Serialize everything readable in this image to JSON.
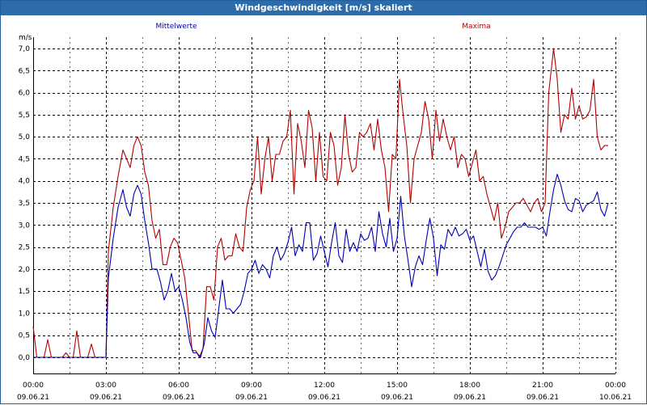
{
  "window": {
    "title": "Windgeschwindigkeit [m/s] skaliert"
  },
  "chart_data": {
    "type": "line",
    "title": "Windgeschwindigkeit [m/s] skaliert",
    "ylabel": "m/s",
    "xlabel": "",
    "ylim": [
      0,
      7
    ],
    "xlim_hours": [
      0,
      24
    ],
    "yticks": [
      "0,0",
      "0,5",
      "1,0",
      "1,5",
      "2,0",
      "2,5",
      "3,0",
      "3,5",
      "4,0",
      "4,5",
      "5,0",
      "5,5",
      "6,0",
      "6,5",
      "7,0"
    ],
    "xticks": [
      {
        "time": "00:00",
        "date": "09.06.21"
      },
      {
        "time": "03:00",
        "date": "09.06.21"
      },
      {
        "time": "06:00",
        "date": "09.06.21"
      },
      {
        "time": "09:00",
        "date": "09.06.21"
      },
      {
        "time": "12:00",
        "date": "09.06.21"
      },
      {
        "time": "15:00",
        "date": "09.06.21"
      },
      {
        "time": "18:00",
        "date": "09.06.21"
      },
      {
        "time": "21:00",
        "date": "09.06.21"
      },
      {
        "time": "00:00",
        "date": "10.06.21"
      }
    ],
    "grid": true,
    "legend_position": "top",
    "series": [
      {
        "name": "Mittelwerte",
        "color": "#0000b4",
        "points": [
          [
            0.0,
            0.0
          ],
          [
            0.3,
            0.0
          ],
          [
            0.6,
            0.0
          ],
          [
            0.9,
            0.0
          ],
          [
            1.2,
            0.0
          ],
          [
            1.5,
            0.0
          ],
          [
            1.8,
            0.0
          ],
          [
            2.1,
            0.0
          ],
          [
            2.4,
            0.0
          ],
          [
            2.7,
            0.0
          ],
          [
            3.0,
            0.0
          ],
          [
            3.1,
            1.8
          ],
          [
            3.3,
            2.7
          ],
          [
            3.5,
            3.4
          ],
          [
            3.7,
            3.8
          ],
          [
            3.85,
            3.4
          ],
          [
            4.0,
            3.2
          ],
          [
            4.15,
            3.7
          ],
          [
            4.3,
            3.9
          ],
          [
            4.45,
            3.7
          ],
          [
            4.6,
            3.1
          ],
          [
            4.75,
            2.6
          ],
          [
            4.9,
            2.0
          ],
          [
            5.1,
            2.0
          ],
          [
            5.25,
            1.7
          ],
          [
            5.4,
            1.3
          ],
          [
            5.55,
            1.5
          ],
          [
            5.7,
            1.9
          ],
          [
            5.85,
            1.5
          ],
          [
            6.0,
            1.6
          ],
          [
            6.15,
            1.3
          ],
          [
            6.3,
            0.9
          ],
          [
            6.45,
            0.35
          ],
          [
            6.6,
            0.1
          ],
          [
            6.75,
            0.1
          ],
          [
            6.9,
            0.0
          ],
          [
            7.05,
            0.3
          ],
          [
            7.2,
            0.9
          ],
          [
            7.35,
            0.6
          ],
          [
            7.5,
            0.45
          ],
          [
            7.65,
            1.1
          ],
          [
            7.8,
            1.75
          ],
          [
            7.95,
            1.1
          ],
          [
            8.1,
            1.1
          ],
          [
            8.25,
            1.0
          ],
          [
            8.4,
            1.1
          ],
          [
            8.55,
            1.2
          ],
          [
            8.7,
            1.5
          ],
          [
            8.85,
            1.9
          ],
          [
            9.0,
            2.0
          ],
          [
            9.15,
            2.2
          ],
          [
            9.3,
            1.9
          ],
          [
            9.45,
            2.1
          ],
          [
            9.6,
            2.0
          ],
          [
            9.75,
            1.8
          ],
          [
            9.9,
            2.3
          ],
          [
            10.05,
            2.5
          ],
          [
            10.2,
            2.2
          ],
          [
            10.35,
            2.35
          ],
          [
            10.5,
            2.6
          ],
          [
            10.65,
            2.95
          ],
          [
            10.8,
            2.3
          ],
          [
            10.95,
            2.55
          ],
          [
            11.1,
            2.4
          ],
          [
            11.25,
            3.05
          ],
          [
            11.4,
            3.05
          ],
          [
            11.55,
            2.2
          ],
          [
            11.7,
            2.35
          ],
          [
            11.85,
            2.75
          ],
          [
            12.0,
            2.4
          ],
          [
            12.15,
            2.05
          ],
          [
            12.3,
            2.6
          ],
          [
            12.45,
            3.05
          ],
          [
            12.6,
            2.3
          ],
          [
            12.75,
            2.15
          ],
          [
            12.9,
            2.9
          ],
          [
            13.05,
            2.4
          ],
          [
            13.2,
            2.6
          ],
          [
            13.35,
            2.4
          ],
          [
            13.5,
            2.8
          ],
          [
            13.65,
            2.65
          ],
          [
            13.8,
            2.7
          ],
          [
            13.95,
            2.95
          ],
          [
            14.1,
            2.4
          ],
          [
            14.25,
            3.3
          ],
          [
            14.4,
            2.8
          ],
          [
            14.55,
            2.5
          ],
          [
            14.7,
            3.15
          ],
          [
            14.85,
            2.4
          ],
          [
            15.0,
            2.7
          ],
          [
            15.15,
            3.65
          ],
          [
            15.3,
            2.75
          ],
          [
            15.45,
            2.2
          ],
          [
            15.6,
            1.6
          ],
          [
            15.75,
            2.05
          ],
          [
            15.9,
            2.3
          ],
          [
            16.05,
            2.1
          ],
          [
            16.2,
            2.65
          ],
          [
            16.35,
            3.15
          ],
          [
            16.5,
            2.7
          ],
          [
            16.65,
            1.85
          ],
          [
            16.8,
            2.55
          ],
          [
            16.95,
            2.45
          ],
          [
            17.1,
            2.9
          ],
          [
            17.25,
            2.75
          ],
          [
            17.4,
            2.95
          ],
          [
            17.55,
            2.75
          ],
          [
            17.7,
            2.8
          ],
          [
            17.85,
            2.9
          ],
          [
            18.0,
            2.65
          ],
          [
            18.15,
            2.75
          ],
          [
            18.3,
            2.4
          ],
          [
            18.45,
            2.05
          ],
          [
            18.6,
            2.45
          ],
          [
            18.75,
            1.95
          ],
          [
            18.9,
            1.75
          ],
          [
            19.05,
            1.85
          ],
          [
            19.2,
            2.05
          ],
          [
            19.35,
            2.3
          ],
          [
            19.5,
            2.55
          ],
          [
            19.65,
            2.7
          ],
          [
            19.8,
            2.85
          ],
          [
            19.95,
            2.95
          ],
          [
            20.1,
            2.95
          ],
          [
            20.25,
            3.05
          ],
          [
            20.4,
            2.95
          ],
          [
            20.55,
            2.95
          ],
          [
            20.7,
            2.95
          ],
          [
            20.85,
            2.9
          ],
          [
            21.0,
            2.95
          ],
          [
            21.15,
            2.75
          ],
          [
            21.3,
            3.3
          ],
          [
            21.45,
            3.8
          ],
          [
            21.6,
            4.15
          ],
          [
            21.75,
            3.9
          ],
          [
            21.9,
            3.55
          ],
          [
            22.05,
            3.35
          ],
          [
            22.2,
            3.3
          ],
          [
            22.35,
            3.6
          ],
          [
            22.5,
            3.55
          ],
          [
            22.65,
            3.3
          ],
          [
            22.8,
            3.45
          ],
          [
            22.95,
            3.5
          ],
          [
            23.1,
            3.55
          ],
          [
            23.25,
            3.75
          ],
          [
            23.4,
            3.35
          ],
          [
            23.55,
            3.2
          ],
          [
            23.7,
            3.5
          ]
        ]
      },
      {
        "name": "Maxima",
        "color": "#b40000",
        "points": [
          [
            0.0,
            0.7
          ],
          [
            0.15,
            0.0
          ],
          [
            0.3,
            0.0
          ],
          [
            0.45,
            0.0
          ],
          [
            0.6,
            0.4
          ],
          [
            0.75,
            0.0
          ],
          [
            0.9,
            0.0
          ],
          [
            1.05,
            0.0
          ],
          [
            1.2,
            0.0
          ],
          [
            1.35,
            0.1
          ],
          [
            1.5,
            0.0
          ],
          [
            1.65,
            0.0
          ],
          [
            1.8,
            0.6
          ],
          [
            1.95,
            0.0
          ],
          [
            2.1,
            0.0
          ],
          [
            2.25,
            0.0
          ],
          [
            2.4,
            0.3
          ],
          [
            2.55,
            0.0
          ],
          [
            2.7,
            0.0
          ],
          [
            2.85,
            0.0
          ],
          [
            3.0,
            0.0
          ],
          [
            3.1,
            2.4
          ],
          [
            3.3,
            3.4
          ],
          [
            3.5,
            4.1
          ],
          [
            3.7,
            4.7
          ],
          [
            3.85,
            4.5
          ],
          [
            4.0,
            4.3
          ],
          [
            4.15,
            4.8
          ],
          [
            4.3,
            5.0
          ],
          [
            4.45,
            4.8
          ],
          [
            4.6,
            4.2
          ],
          [
            4.75,
            3.9
          ],
          [
            4.9,
            3.1
          ],
          [
            5.05,
            2.7
          ],
          [
            5.2,
            2.9
          ],
          [
            5.35,
            2.1
          ],
          [
            5.5,
            2.1
          ],
          [
            5.65,
            2.5
          ],
          [
            5.8,
            2.7
          ],
          [
            5.95,
            2.6
          ],
          [
            6.1,
            2.2
          ],
          [
            6.25,
            1.8
          ],
          [
            6.4,
            1.0
          ],
          [
            6.55,
            0.15
          ],
          [
            6.7,
            0.15
          ],
          [
            6.85,
            0.0
          ],
          [
            7.0,
            0.2
          ],
          [
            7.15,
            1.6
          ],
          [
            7.3,
            1.6
          ],
          [
            7.45,
            1.3
          ],
          [
            7.6,
            2.5
          ],
          [
            7.75,
            2.7
          ],
          [
            7.9,
            2.2
          ],
          [
            8.05,
            2.3
          ],
          [
            8.2,
            2.3
          ],
          [
            8.35,
            2.8
          ],
          [
            8.5,
            2.5
          ],
          [
            8.65,
            2.4
          ],
          [
            8.8,
            3.4
          ],
          [
            8.95,
            3.8
          ],
          [
            9.1,
            4.0
          ],
          [
            9.25,
            5.0
          ],
          [
            9.4,
            3.7
          ],
          [
            9.55,
            4.5
          ],
          [
            9.7,
            5.0
          ],
          [
            9.85,
            4.0
          ],
          [
            10.0,
            4.6
          ],
          [
            10.15,
            4.6
          ],
          [
            10.3,
            4.9
          ],
          [
            10.45,
            5.0
          ],
          [
            10.6,
            5.6
          ],
          [
            10.75,
            3.7
          ],
          [
            10.9,
            5.3
          ],
          [
            11.05,
            4.9
          ],
          [
            11.2,
            4.3
          ],
          [
            11.35,
            5.6
          ],
          [
            11.5,
            5.2
          ],
          [
            11.65,
            4.0
          ],
          [
            11.8,
            5.1
          ],
          [
            11.95,
            4.1
          ],
          [
            12.1,
            4.0
          ],
          [
            12.25,
            5.1
          ],
          [
            12.4,
            4.8
          ],
          [
            12.55,
            3.9
          ],
          [
            12.7,
            4.3
          ],
          [
            12.85,
            5.5
          ],
          [
            13.0,
            4.6
          ],
          [
            13.15,
            4.2
          ],
          [
            13.3,
            4.3
          ],
          [
            13.45,
            5.1
          ],
          [
            13.6,
            5.0
          ],
          [
            13.75,
            5.1
          ],
          [
            13.9,
            5.3
          ],
          [
            14.05,
            4.7
          ],
          [
            14.2,
            5.4
          ],
          [
            14.35,
            4.7
          ],
          [
            14.5,
            4.3
          ],
          [
            14.65,
            3.3
          ],
          [
            14.8,
            4.6
          ],
          [
            14.95,
            4.5
          ],
          [
            15.1,
            6.3
          ],
          [
            15.25,
            5.5
          ],
          [
            15.4,
            4.8
          ],
          [
            15.55,
            3.5
          ],
          [
            15.7,
            4.5
          ],
          [
            15.85,
            4.8
          ],
          [
            16.0,
            5.1
          ],
          [
            16.15,
            5.8
          ],
          [
            16.3,
            5.4
          ],
          [
            16.45,
            4.5
          ],
          [
            16.6,
            5.6
          ],
          [
            16.75,
            4.9
          ],
          [
            16.9,
            5.4
          ],
          [
            17.05,
            5.0
          ],
          [
            17.2,
            4.7
          ],
          [
            17.35,
            5.0
          ],
          [
            17.5,
            4.3
          ],
          [
            17.65,
            4.6
          ],
          [
            17.8,
            4.5
          ],
          [
            17.95,
            4.1
          ],
          [
            18.1,
            4.4
          ],
          [
            18.25,
            4.7
          ],
          [
            18.4,
            4.0
          ],
          [
            18.55,
            4.1
          ],
          [
            18.7,
            3.7
          ],
          [
            18.85,
            3.4
          ],
          [
            19.0,
            3.1
          ],
          [
            19.15,
            3.5
          ],
          [
            19.3,
            2.7
          ],
          [
            19.45,
            2.95
          ],
          [
            19.6,
            3.3
          ],
          [
            19.75,
            3.4
          ],
          [
            19.9,
            3.5
          ],
          [
            20.05,
            3.5
          ],
          [
            20.2,
            3.6
          ],
          [
            20.35,
            3.45
          ],
          [
            20.5,
            3.3
          ],
          [
            20.65,
            3.5
          ],
          [
            20.8,
            3.6
          ],
          [
            20.95,
            3.3
          ],
          [
            21.1,
            3.5
          ],
          [
            21.25,
            6.0
          ],
          [
            21.45,
            7.0
          ],
          [
            21.6,
            6.3
          ],
          [
            21.75,
            5.1
          ],
          [
            21.9,
            5.5
          ],
          [
            22.05,
            5.4
          ],
          [
            22.2,
            6.1
          ],
          [
            22.35,
            5.4
          ],
          [
            22.5,
            5.7
          ],
          [
            22.65,
            5.4
          ],
          [
            22.8,
            5.45
          ],
          [
            22.95,
            5.6
          ],
          [
            23.1,
            6.3
          ],
          [
            23.25,
            5.0
          ],
          [
            23.4,
            4.7
          ],
          [
            23.55,
            4.8
          ],
          [
            23.7,
            4.8
          ]
        ]
      }
    ]
  }
}
